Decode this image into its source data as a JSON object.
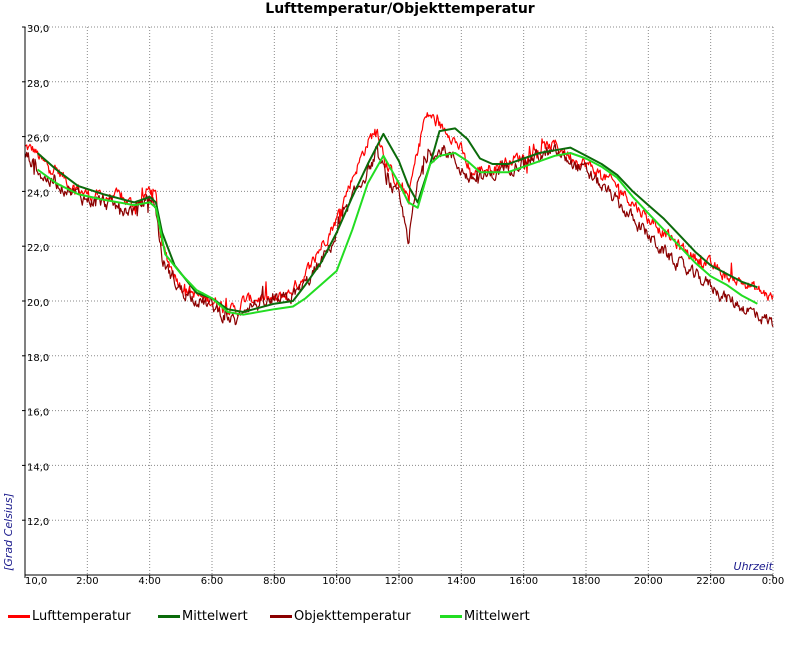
{
  "chart_data": {
    "type": "line",
    "title": "Lufttemperatur/Objekttemperatur",
    "xlabel": "Uhrzeit",
    "ylabel": "[Grad Celsius]",
    "xlim": [
      0,
      24
    ],
    "ylim": [
      10,
      30
    ],
    "x_ticks": [
      {
        "value": 0,
        "label": "10,0"
      },
      {
        "value": 2,
        "label": "2:00"
      },
      {
        "value": 4,
        "label": "4:00"
      },
      {
        "value": 6,
        "label": "6:00"
      },
      {
        "value": 8,
        "label": "8:00"
      },
      {
        "value": 10,
        "label": "10:00"
      },
      {
        "value": 12,
        "label": "12:00"
      },
      {
        "value": 14,
        "label": "14:00"
      },
      {
        "value": 16,
        "label": "16:00"
      },
      {
        "value": 18,
        "label": "18:00"
      },
      {
        "value": 20,
        "label": "20:00"
      },
      {
        "value": 22,
        "label": "22:00"
      },
      {
        "value": 24,
        "label": "0:00"
      }
    ],
    "y_ticks": [
      {
        "value": 12,
        "label": "12,0"
      },
      {
        "value": 14,
        "label": "14,0"
      },
      {
        "value": 16,
        "label": "16,0"
      },
      {
        "value": 18,
        "label": "18,0"
      },
      {
        "value": 20,
        "label": "20,0"
      },
      {
        "value": 22,
        "label": "22,0"
      },
      {
        "value": 24,
        "label": "24,0"
      },
      {
        "value": 26,
        "label": "26,0"
      },
      {
        "value": 28,
        "label": "28,0"
      },
      {
        "value": 30,
        "label": "30,0"
      }
    ],
    "grid": true,
    "legend_position": "bottom",
    "series": [
      {
        "name": "Lufttemperatur",
        "color": "#ff0000",
        "noise": 0.35,
        "x": [
          0,
          0.3,
          0.6,
          1.0,
          1.5,
          2.0,
          2.5,
          3.0,
          3.5,
          3.8,
          4.0,
          4.2,
          4.4,
          4.7,
          5.0,
          5.5,
          6.0,
          6.5,
          6.8,
          7.0,
          7.5,
          8.0,
          8.5,
          9.0,
          9.5,
          10.0,
          10.5,
          11.0,
          11.3,
          11.6,
          12.0,
          12.3,
          12.6,
          12.8,
          13.0,
          13.2,
          13.4,
          13.6,
          14.0,
          14.3,
          14.6,
          15.0,
          15.5,
          16.0,
          16.5,
          17.0,
          17.5,
          18.0,
          18.5,
          19.0,
          19.5,
          20.0,
          20.5,
          21.0,
          21.5,
          22.0,
          22.5,
          23.0,
          23.5,
          24.0
        ],
        "y": [
          25.6,
          25.5,
          25.0,
          24.8,
          24.2,
          23.9,
          23.8,
          23.8,
          23.5,
          23.8,
          24.1,
          23.8,
          22.0,
          21.2,
          20.6,
          20.2,
          20.0,
          19.8,
          19.6,
          20.0,
          20.1,
          20.0,
          20.3,
          21.0,
          22.0,
          23.0,
          24.5,
          25.8,
          26.3,
          25.0,
          24.2,
          23.8,
          25.5,
          26.6,
          26.8,
          26.5,
          26.3,
          26.2,
          25.5,
          24.6,
          24.8,
          24.9,
          25.1,
          25.3,
          25.5,
          25.7,
          25.3,
          25.0,
          24.6,
          24.2,
          23.6,
          23.0,
          22.5,
          22.0,
          21.6,
          21.3,
          20.9,
          20.7,
          20.4,
          20.1
        ]
      },
      {
        "name": "Mittelwert",
        "color": "#0b6b0b",
        "noise": 0,
        "x": [
          0.4,
          1.0,
          1.7,
          2.5,
          3.5,
          4.0,
          4.2,
          4.4,
          4.8,
          5.5,
          6.0,
          6.5,
          7.0,
          8.0,
          8.6,
          9.0,
          9.5,
          10.0,
          10.5,
          11.0,
          11.5,
          12.0,
          12.3,
          12.6,
          13.0,
          13.3,
          13.8,
          14.2,
          14.6,
          15.0,
          15.5,
          16.0,
          16.5,
          17.0,
          17.5,
          18.0,
          18.5,
          19.0,
          19.5,
          20.0,
          20.5,
          21.0,
          21.5,
          22.0,
          22.5,
          23.0,
          23.5
        ],
        "y": [
          25.4,
          24.8,
          24.2,
          23.9,
          23.6,
          23.8,
          23.6,
          22.5,
          21.3,
          20.3,
          20.1,
          19.7,
          19.6,
          19.9,
          20.0,
          20.6,
          21.4,
          22.5,
          23.8,
          25.0,
          26.1,
          25.1,
          24.2,
          23.6,
          25.0,
          26.2,
          26.3,
          25.9,
          25.2,
          25.0,
          25.0,
          25.2,
          25.4,
          25.5,
          25.6,
          25.3,
          25.0,
          24.6,
          24.0,
          23.5,
          23.0,
          22.4,
          21.8,
          21.3,
          21.0,
          20.7,
          20.5
        ]
      },
      {
        "name": "Objekttemperatur",
        "color": "#8b0000",
        "noise": 0.4,
        "x": [
          0,
          0.3,
          0.6,
          1.0,
          1.5,
          2.0,
          2.5,
          3.0,
          3.5,
          3.8,
          4.0,
          4.2,
          4.4,
          4.7,
          5.0,
          5.5,
          6.0,
          6.5,
          6.8,
          7.0,
          7.5,
          8.0,
          8.5,
          9.0,
          9.5,
          10.0,
          10.5,
          11.0,
          11.3,
          11.6,
          12.0,
          12.3,
          12.6,
          12.8,
          13.0,
          13.2,
          13.4,
          13.6,
          14.0,
          14.3,
          14.6,
          15.0,
          15.5,
          16.0,
          16.5,
          17.0,
          17.5,
          18.0,
          18.5,
          19.0,
          19.5,
          20.0,
          20.5,
          21.0,
          21.5,
          22.0,
          22.5,
          23.0,
          23.5,
          24.0
        ],
        "y": [
          25.4,
          25.0,
          24.5,
          24.3,
          24.0,
          23.7,
          23.6,
          23.4,
          23.3,
          23.6,
          23.8,
          23.4,
          21.5,
          20.9,
          20.4,
          20.1,
          19.8,
          19.4,
          19.2,
          19.8,
          19.9,
          19.9,
          20.1,
          20.6,
          21.4,
          22.4,
          23.7,
          24.8,
          25.3,
          24.5,
          23.7,
          22.3,
          24.2,
          25.0,
          25.6,
          25.3,
          25.5,
          25.4,
          24.8,
          24.4,
          24.5,
          24.6,
          24.9,
          25.1,
          25.3,
          25.4,
          25.1,
          24.7,
          24.2,
          23.6,
          23.0,
          22.4,
          21.8,
          21.3,
          20.9,
          20.6,
          20.1,
          19.8,
          19.5,
          19.2
        ]
      },
      {
        "name": "Mittelwert",
        "color": "#22dd22",
        "noise": 0,
        "x": [
          0.4,
          1.0,
          1.7,
          2.5,
          3.5,
          4.0,
          4.2,
          4.5,
          5.0,
          5.5,
          6.0,
          6.5,
          7.0,
          8.0,
          8.6,
          9.0,
          9.5,
          10.0,
          10.5,
          11.0,
          11.5,
          12.0,
          12.3,
          12.6,
          13.0,
          13.3,
          13.8,
          14.2,
          14.6,
          15.0,
          15.5,
          16.0,
          16.5,
          17.0,
          17.5,
          18.0,
          18.5,
          19.0,
          19.5,
          20.0,
          20.5,
          21.0,
          21.5,
          22.0,
          22.5,
          23.0,
          23.5
        ],
        "y": [
          24.8,
          24.3,
          23.9,
          23.7,
          23.5,
          23.6,
          23.4,
          21.7,
          21.0,
          20.4,
          20.1,
          19.6,
          19.5,
          19.7,
          19.8,
          20.1,
          20.6,
          21.1,
          22.6,
          24.3,
          25.3,
          24.3,
          23.6,
          23.4,
          25.0,
          25.3,
          25.4,
          25.1,
          24.7,
          24.7,
          24.7,
          24.9,
          25.1,
          25.3,
          25.4,
          25.2,
          24.9,
          24.5,
          23.8,
          23.2,
          22.6,
          22.0,
          21.4,
          20.9,
          20.6,
          20.2,
          19.9
        ]
      }
    ]
  }
}
